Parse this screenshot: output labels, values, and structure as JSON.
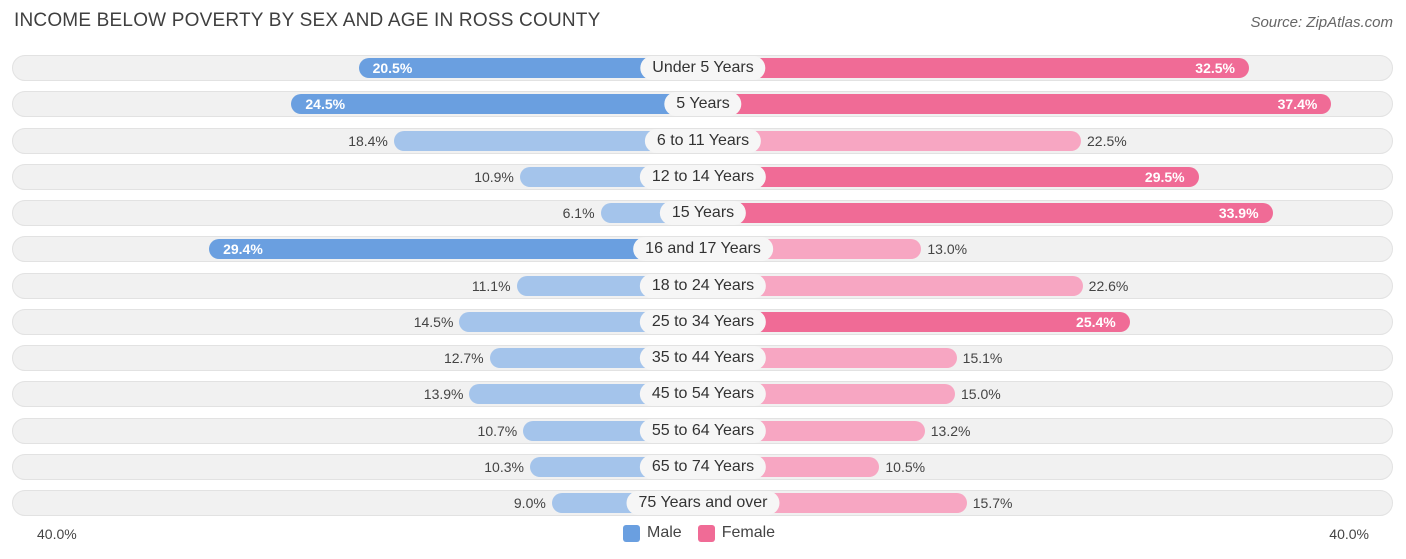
{
  "title": "INCOME BELOW POVERTY BY SEX AND AGE IN ROSS COUNTY",
  "source": "Source: ZipAtlas.com",
  "colors": {
    "male_strong": "#6a9fe0",
    "male_light": "#a4c4eb",
    "female_strong": "#f06b96",
    "female_light": "#f7a6c2"
  },
  "legend": {
    "male": "Male",
    "female": "Female"
  },
  "axis": {
    "left": "40.0%",
    "right": "40.0%"
  },
  "chart_data": {
    "type": "bar",
    "orientation": "horizontal-diverging",
    "title": "INCOME BELOW POVERTY BY SEX AND AGE IN ROSS COUNTY",
    "xlim": [
      -40,
      40
    ],
    "categories": [
      "Under 5 Years",
      "5 Years",
      "6 to 11 Years",
      "12 to 14 Years",
      "15 Years",
      "16 and 17 Years",
      "18 to 24 Years",
      "25 to 34 Years",
      "35 to 44 Years",
      "45 to 54 Years",
      "55 to 64 Years",
      "65 to 74 Years",
      "75 Years and over"
    ],
    "series": [
      {
        "name": "Male",
        "values": [
          20.5,
          24.5,
          18.4,
          10.9,
          6.1,
          29.4,
          11.1,
          14.5,
          12.7,
          13.9,
          10.7,
          10.3,
          9.0
        ],
        "labels": [
          "20.5%",
          "24.5%",
          "18.4%",
          "10.9%",
          "6.1%",
          "29.4%",
          "11.1%",
          "14.5%",
          "12.7%",
          "13.9%",
          "10.7%",
          "10.3%",
          "9.0%"
        ]
      },
      {
        "name": "Female",
        "values": [
          32.5,
          37.4,
          22.5,
          29.5,
          33.9,
          13.0,
          22.6,
          25.4,
          15.1,
          15.0,
          13.2,
          10.5,
          15.7
        ],
        "labels": [
          "32.5%",
          "37.4%",
          "22.5%",
          "29.5%",
          "33.9%",
          "13.0%",
          "22.6%",
          "25.4%",
          "15.1%",
          "15.0%",
          "13.2%",
          "10.5%",
          "15.7%"
        ]
      }
    ],
    "legend_position": "bottom-center"
  }
}
